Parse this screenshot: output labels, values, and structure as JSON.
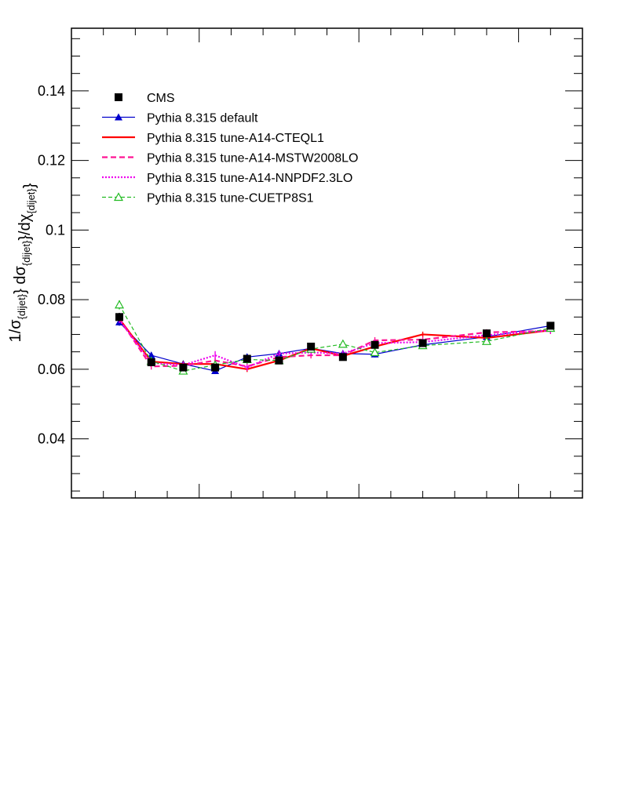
{
  "chart_data": {
    "type": "line",
    "title": "",
    "xlabel": "",
    "ylabel": {
      "prefix": "1/σ",
      "sub1": "{dijet}",
      "middle": "} dσ",
      "sub2": "{dijet}",
      "middle2": "}/dχ",
      "sub3": "{dijet}",
      "suffix": "}"
    },
    "ylim": [
      0.023,
      0.158
    ],
    "xlim": [
      1,
      17
    ],
    "y_ticks": [
      0.04,
      0.06,
      0.08,
      0.1,
      0.12,
      0.14
    ],
    "y_tick_labels": [
      "0.04",
      "0.06",
      "0.08",
      "0.1",
      "0.12",
      "0.14"
    ],
    "x": [
      2.5,
      3.5,
      4.5,
      5.5,
      6.5,
      7.5,
      8.5,
      9.5,
      10.5,
      12,
      14,
      16
    ],
    "legend_position": "top-left",
    "series": [
      {
        "name": "CMS",
        "style": "markers",
        "marker": "square",
        "color": "#000000",
        "values": [
          0.075,
          0.062,
          0.0605,
          0.0605,
          0.063,
          0.0625,
          0.0665,
          0.0635,
          0.067,
          0.0675,
          0.0703,
          0.0725
        ],
        "errors": [
          0.0012,
          0.0008,
          0.0008,
          0.0008,
          0.0008,
          0.0008,
          0.0008,
          0.0008,
          0.0008,
          0.0008,
          0.0008,
          0.0008
        ]
      },
      {
        "name": "Pythia 8.315 default",
        "style": "line-markers",
        "marker": "triangle",
        "color": "#0000cc",
        "dash": "",
        "width": 1.2,
        "values": [
          0.0735,
          0.064,
          0.0615,
          0.0595,
          0.0635,
          0.0645,
          0.066,
          0.0645,
          0.0643,
          0.067,
          0.0693,
          0.0725
        ],
        "errors": [
          0.001,
          0.0009,
          0.0009,
          0.0009,
          0.0009,
          0.0009,
          0.0009,
          0.0009,
          0.0009,
          0.0009,
          0.0009,
          0.0009
        ]
      },
      {
        "name": "Pythia 8.315 tune-A14-CTEQL1",
        "style": "line",
        "color": "#ff0000",
        "dash": "",
        "width": 2.2,
        "values": [
          0.0745,
          0.0622,
          0.0615,
          0.0615,
          0.06,
          0.0625,
          0.066,
          0.0638,
          0.0665,
          0.07,
          0.069,
          0.0712
        ],
        "errors": [
          0.0009,
          0.0008,
          0.0008,
          0.0008,
          0.0008,
          0.0008,
          0.0008,
          0.0008,
          0.0008,
          0.0008,
          0.0008,
          0.0008
        ]
      },
      {
        "name": "Pythia 8.315 tune-A14-MSTW2008LO",
        "style": "line",
        "color": "#ff1493",
        "dash": "7,4",
        "width": 2.2,
        "values": [
          0.0745,
          0.0608,
          0.061,
          0.0625,
          0.0608,
          0.0635,
          0.064,
          0.064,
          0.0683,
          0.0685,
          0.0706,
          0.071
        ],
        "errors": [
          0.0009,
          0.0009,
          0.0009,
          0.0009,
          0.0009,
          0.0009,
          0.0009,
          0.0009,
          0.0009,
          0.0009,
          0.0009,
          0.0009
        ]
      },
      {
        "name": "Pythia 8.315 tune-A14-NNPDF2.3LO",
        "style": "line",
        "color": "#ee00ee",
        "dash": "2,2",
        "width": 2.2,
        "values": [
          0.0742,
          0.0618,
          0.0612,
          0.064,
          0.0605,
          0.0645,
          0.0648,
          0.0645,
          0.0675,
          0.0678,
          0.0698,
          0.0712
        ],
        "errors": [
          0.0009,
          0.0009,
          0.0009,
          0.0012,
          0.0009,
          0.0009,
          0.0009,
          0.0009,
          0.0009,
          0.0009,
          0.0009,
          0.0009
        ]
      },
      {
        "name": "Pythia 8.315 tune-CUETP8S1",
        "style": "line-markers",
        "marker": "triangle-open",
        "color": "#22bb22",
        "dash": "5,3",
        "width": 1.2,
        "values": [
          0.0785,
          0.0623,
          0.0595,
          0.0612,
          0.0628,
          0.0625,
          0.0658,
          0.0672,
          0.0648,
          0.0668,
          0.068,
          0.0718
        ],
        "errors": [
          0.0013,
          0.0009,
          0.0009,
          0.0009,
          0.0012,
          0.0009,
          0.0009,
          0.0009,
          0.0009,
          0.0009,
          0.0009,
          0.0009
        ]
      }
    ]
  }
}
